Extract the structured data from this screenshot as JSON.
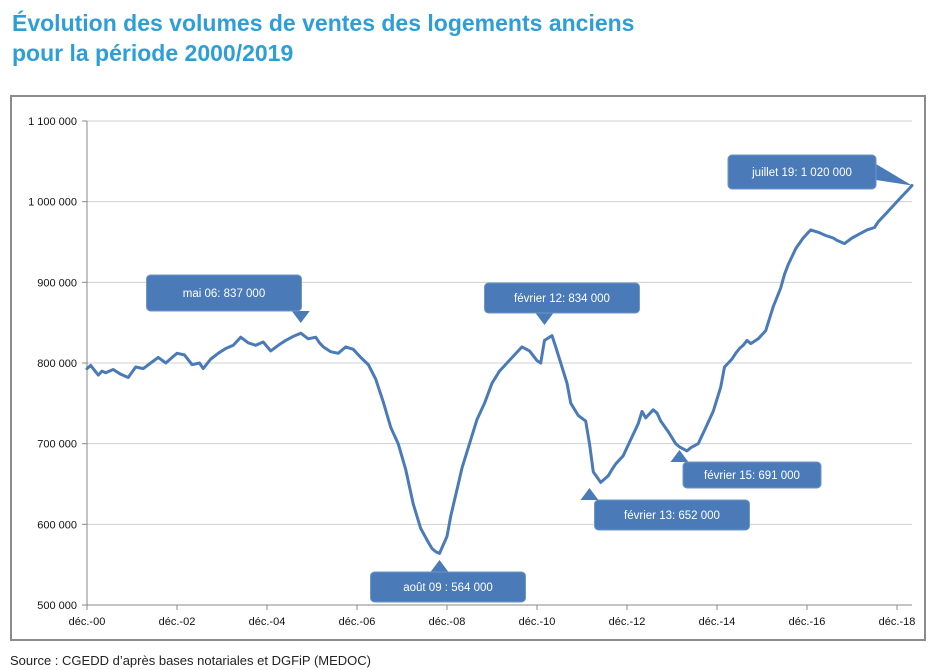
{
  "title": {
    "line1": "Évolution des volumes de ventes des logements anciens",
    "line2": "pour la période 2000/2019"
  },
  "source": "Source : CGEDD d’après bases notariales et DGFiP (MEDOC)",
  "colors": {
    "title": "#2e9fd6",
    "line": "#4a7ab8",
    "callout": "#4a7ab8",
    "grid": "#d0d0d0"
  },
  "chart_data": {
    "type": "line",
    "title": "Évolution des volumes de ventes des logements anciens pour la période 2000/2019",
    "xlabel": "",
    "ylabel": "",
    "ylim": [
      500000,
      1100000
    ],
    "xlim": [
      2000.917,
      2019.25
    ],
    "grid": true,
    "y_ticks": [
      500000,
      600000,
      700000,
      800000,
      900000,
      1000000,
      1100000
    ],
    "y_tick_labels": [
      "500 000",
      "600 000",
      "700 000",
      "800 000",
      "900 000",
      "1 000 000",
      "1 100 000"
    ],
    "x_ticks": [
      2000.917,
      2002.917,
      2004.917,
      2006.917,
      2008.917,
      2010.917,
      2012.917,
      2014.917,
      2016.917,
      2018.917
    ],
    "x_tick_labels": [
      "déc.-00",
      "déc.-02",
      "déc.-04",
      "déc.-06",
      "déc.-08",
      "déc.-10",
      "déc.-12",
      "déc.-14",
      "déc.-16",
      "déc.-18"
    ],
    "series": [
      {
        "x": [
          2000.917,
          2001.0,
          2001.083,
          2001.167,
          2001.25,
          2001.333,
          2001.5,
          2001.667,
          2001.833,
          2002.0,
          2002.167,
          2002.333,
          2002.5,
          2002.667,
          2002.833,
          2002.917,
          2003.083,
          2003.25,
          2003.417,
          2003.5,
          2003.667,
          2003.833,
          2004.0,
          2004.167,
          2004.333,
          2004.5,
          2004.667,
          2004.833,
          2005.0,
          2005.167,
          2005.333,
          2005.5,
          2005.667,
          2005.833,
          2006.0,
          2006.083,
          2006.167,
          2006.333,
          2006.5,
          2006.667,
          2006.833,
          2007.0,
          2007.167,
          2007.333,
          2007.5,
          2007.667,
          2007.833,
          2008.0,
          2008.167,
          2008.333,
          2008.5,
          2008.583,
          2008.667,
          2008.75,
          2008.917,
          2009.0,
          2009.167,
          2009.25,
          2009.417,
          2009.583,
          2009.75,
          2009.917,
          2010.083,
          2010.25,
          2010.417,
          2010.583,
          2010.75,
          2010.917,
          2011.0,
          2011.083,
          2011.25,
          2011.333,
          2011.417,
          2011.583,
          2011.667,
          2011.833,
          2012.0,
          2012.083,
          2012.167,
          2012.333,
          2012.5,
          2012.583,
          2012.667,
          2012.833,
          2013.0,
          2013.167,
          2013.25,
          2013.333,
          2013.5,
          2013.583,
          2013.667,
          2013.833,
          2014.0,
          2014.083,
          2014.25,
          2014.333,
          2014.5,
          2014.667,
          2014.833,
          2015.0,
          2015.083,
          2015.167,
          2015.25,
          2015.333,
          2015.417,
          2015.5,
          2015.583,
          2015.667,
          2015.833,
          2016.0,
          2016.167,
          2016.333,
          2016.417,
          2016.5,
          2016.667,
          2016.833,
          2016.917,
          2017.0,
          2017.167,
          2017.333,
          2017.5,
          2017.583,
          2017.75,
          2017.917,
          2018.083,
          2018.25,
          2018.417,
          2018.5,
          2018.667,
          2018.833,
          2019.0,
          2019.167,
          2019.25
        ],
        "values": [
          793000,
          797000,
          791000,
          785000,
          790000,
          788000,
          792000,
          786000,
          782000,
          795000,
          793000,
          800000,
          807000,
          800000,
          808000,
          812000,
          810000,
          798000,
          800000,
          793000,
          805000,
          812000,
          818000,
          822000,
          832000,
          825000,
          822000,
          826000,
          815000,
          822000,
          828000,
          833000,
          837000,
          830000,
          832000,
          825000,
          820000,
          814000,
          812000,
          820000,
          817000,
          807000,
          798000,
          780000,
          752000,
          720000,
          700000,
          668000,
          625000,
          595000,
          578000,
          570000,
          566000,
          564000,
          585000,
          610000,
          650000,
          670000,
          700000,
          730000,
          750000,
          775000,
          790000,
          800000,
          810000,
          820000,
          815000,
          803000,
          800000,
          828000,
          834000,
          820000,
          805000,
          775000,
          750000,
          735000,
          728000,
          700000,
          665000,
          652000,
          660000,
          668000,
          675000,
          685000,
          705000,
          725000,
          740000,
          732000,
          742000,
          738000,
          728000,
          715000,
          700000,
          696000,
          691000,
          695000,
          700000,
          720000,
          740000,
          770000,
          795000,
          800000,
          805000,
          812000,
          818000,
          822000,
          828000,
          824000,
          830000,
          840000,
          870000,
          893000,
          910000,
          922000,
          942000,
          955000,
          960000,
          965000,
          962000,
          958000,
          955000,
          952000,
          948000,
          955000,
          960000,
          965000,
          968000,
          975000,
          985000,
          995000,
          1005000,
          1015000,
          1020000
        ]
      }
    ],
    "annotations": [
      {
        "label": "mai 06: 837 000",
        "x": 2005.667,
        "y": 837000
      },
      {
        "label": "août 09 : 564 000",
        "x": 2008.75,
        "y": 564000
      },
      {
        "label": "février 12: 834 000",
        "x": 2011.083,
        "y": 834000
      },
      {
        "label": "février 13: 652 000",
        "x": 2012.083,
        "y": 652000
      },
      {
        "label": "février 15: 691 000",
        "x": 2014.083,
        "y": 691000
      },
      {
        "label": "juillet 19: 1 020 000",
        "x": 2019.25,
        "y": 1020000
      }
    ]
  }
}
